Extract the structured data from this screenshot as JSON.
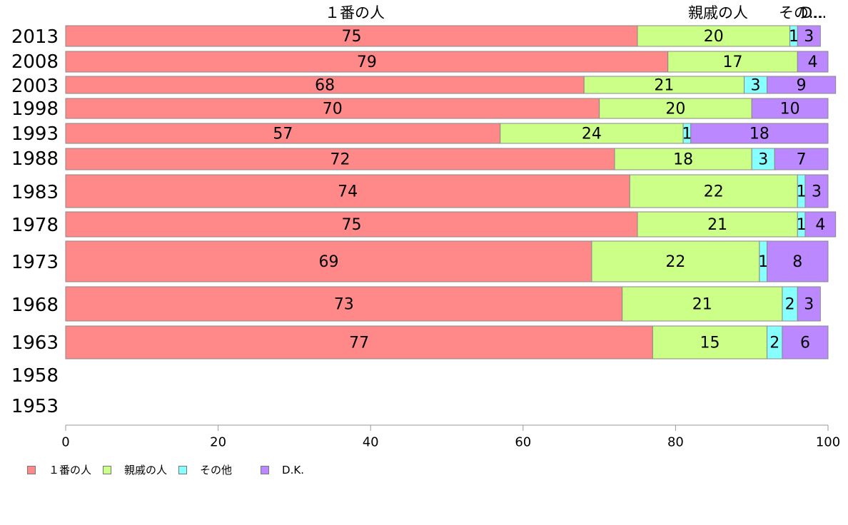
{
  "chart_data": {
    "type": "bar",
    "orientation": "horizontal",
    "stacked": true,
    "categories": [
      "2013",
      "2008",
      "2003",
      "1998",
      "1993",
      "1988",
      "1983",
      "1978",
      "1973",
      "1968",
      "1963",
      "1958",
      "1953"
    ],
    "series": [
      {
        "name": "１番の人",
        "color": "#ff8888",
        "values": [
          75,
          79,
          68,
          70,
          57,
          72,
          74,
          75,
          69,
          73,
          77,
          null,
          null
        ]
      },
      {
        "name": "親戚の人",
        "color": "#ccff88",
        "values": [
          20,
          17,
          21,
          20,
          24,
          18,
          22,
          21,
          22,
          21,
          15,
          null,
          null
        ]
      },
      {
        "name": "その他",
        "color": "#88ffff",
        "values": [
          1,
          null,
          3,
          null,
          1,
          3,
          1,
          1,
          1,
          2,
          2,
          null,
          null
        ]
      },
      {
        "name": "D.K.",
        "color": "#bb88ff",
        "values": [
          3,
          4,
          9,
          10,
          18,
          7,
          3,
          4,
          8,
          3,
          6,
          null,
          null
        ]
      }
    ],
    "top_labels": [
      "１番の人",
      "親戚の人",
      "その...",
      "D..."
    ],
    "x_ticks": [
      0,
      20,
      40,
      60,
      80,
      100
    ],
    "xlim": [
      0,
      100
    ],
    "legend_position": "bottom-left",
    "grid": false
  }
}
